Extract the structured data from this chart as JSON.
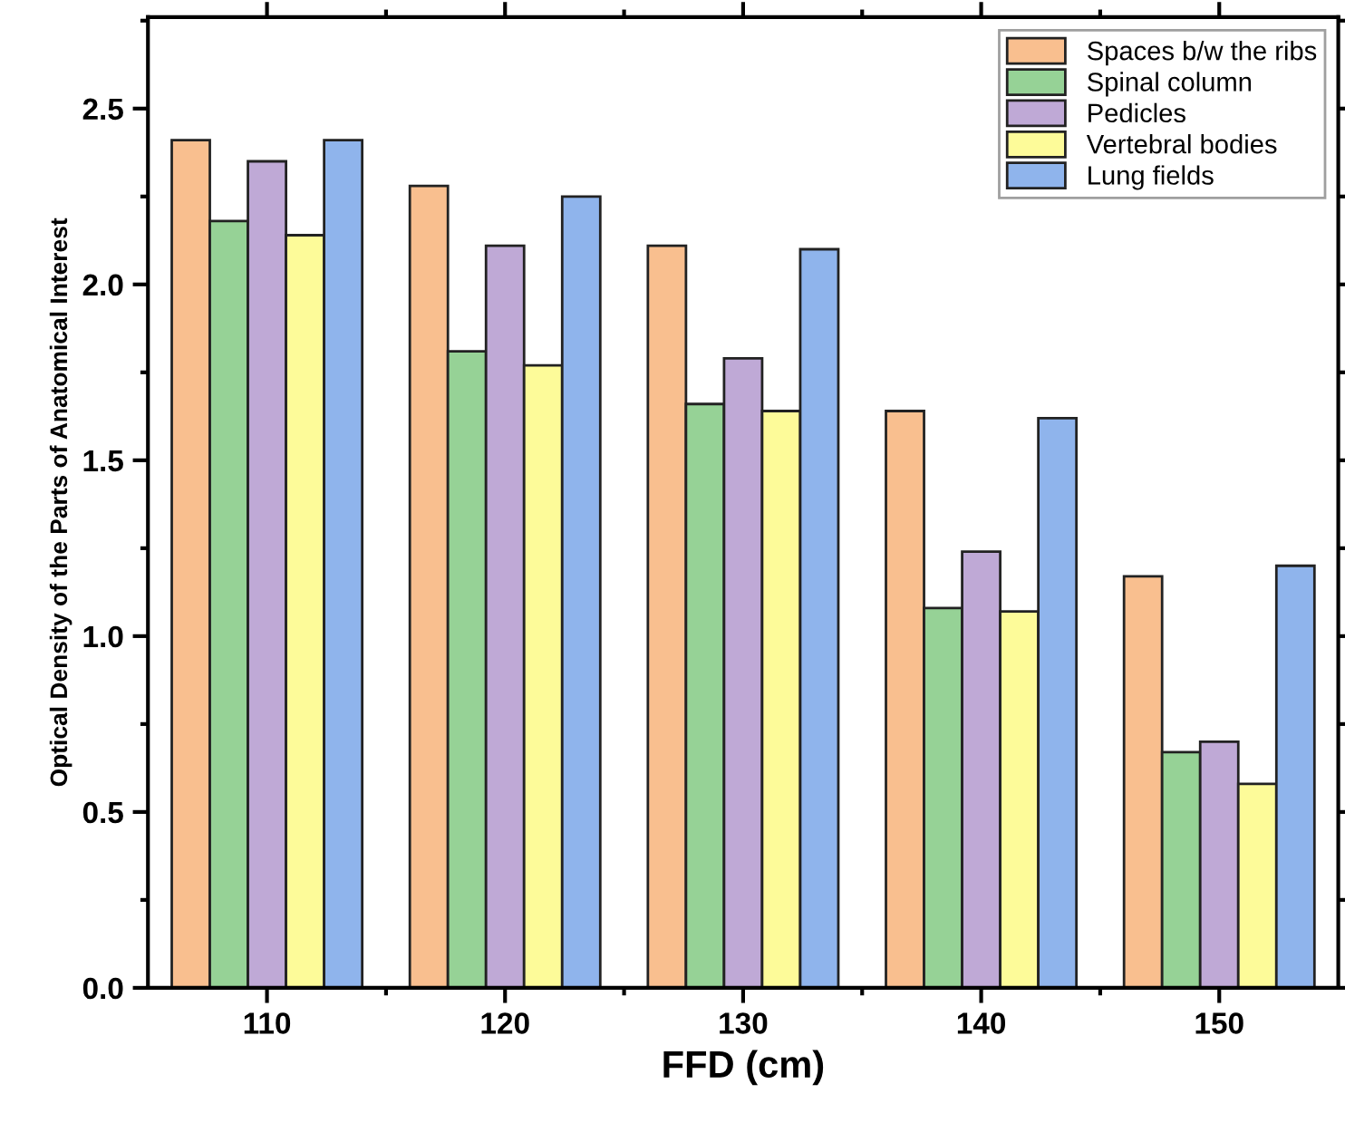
{
  "chart_data": {
    "type": "bar",
    "xlabel": "FFD (cm)",
    "ylabel": "Optical Density of the Parts of Anatomical Interest",
    "categories": [
      "110",
      "120",
      "130",
      "140",
      "150"
    ],
    "series": [
      {
        "name": "Spaces b/w the ribs",
        "color": "#f9bf8f",
        "values": [
          2.41,
          2.28,
          2.11,
          1.64,
          1.17
        ]
      },
      {
        "name": "Spinal column",
        "color": "#96d296",
        "values": [
          2.18,
          1.81,
          1.66,
          1.08,
          0.67
        ]
      },
      {
        "name": "Pedicles",
        "color": "#bfa9d6",
        "values": [
          2.35,
          2.11,
          1.79,
          1.24,
          0.7
        ]
      },
      {
        "name": "Vertebral bodies",
        "color": "#fdfb99",
        "values": [
          2.14,
          1.77,
          1.64,
          1.07,
          0.58
        ]
      },
      {
        "name": "Lung fields",
        "color": "#8fb4ec",
        "values": [
          2.41,
          2.25,
          2.1,
          1.62,
          1.2
        ]
      }
    ],
    "ylim": [
      0,
      2.76
    ],
    "yticks": [
      {
        "value": 0,
        "label": "0.0"
      },
      0.5,
      {
        "value": 1,
        "label": "1.0"
      },
      1.5,
      {
        "value": 2,
        "label": "2.0"
      },
      2.5
    ],
    "grid": false,
    "legend": "top right"
  }
}
